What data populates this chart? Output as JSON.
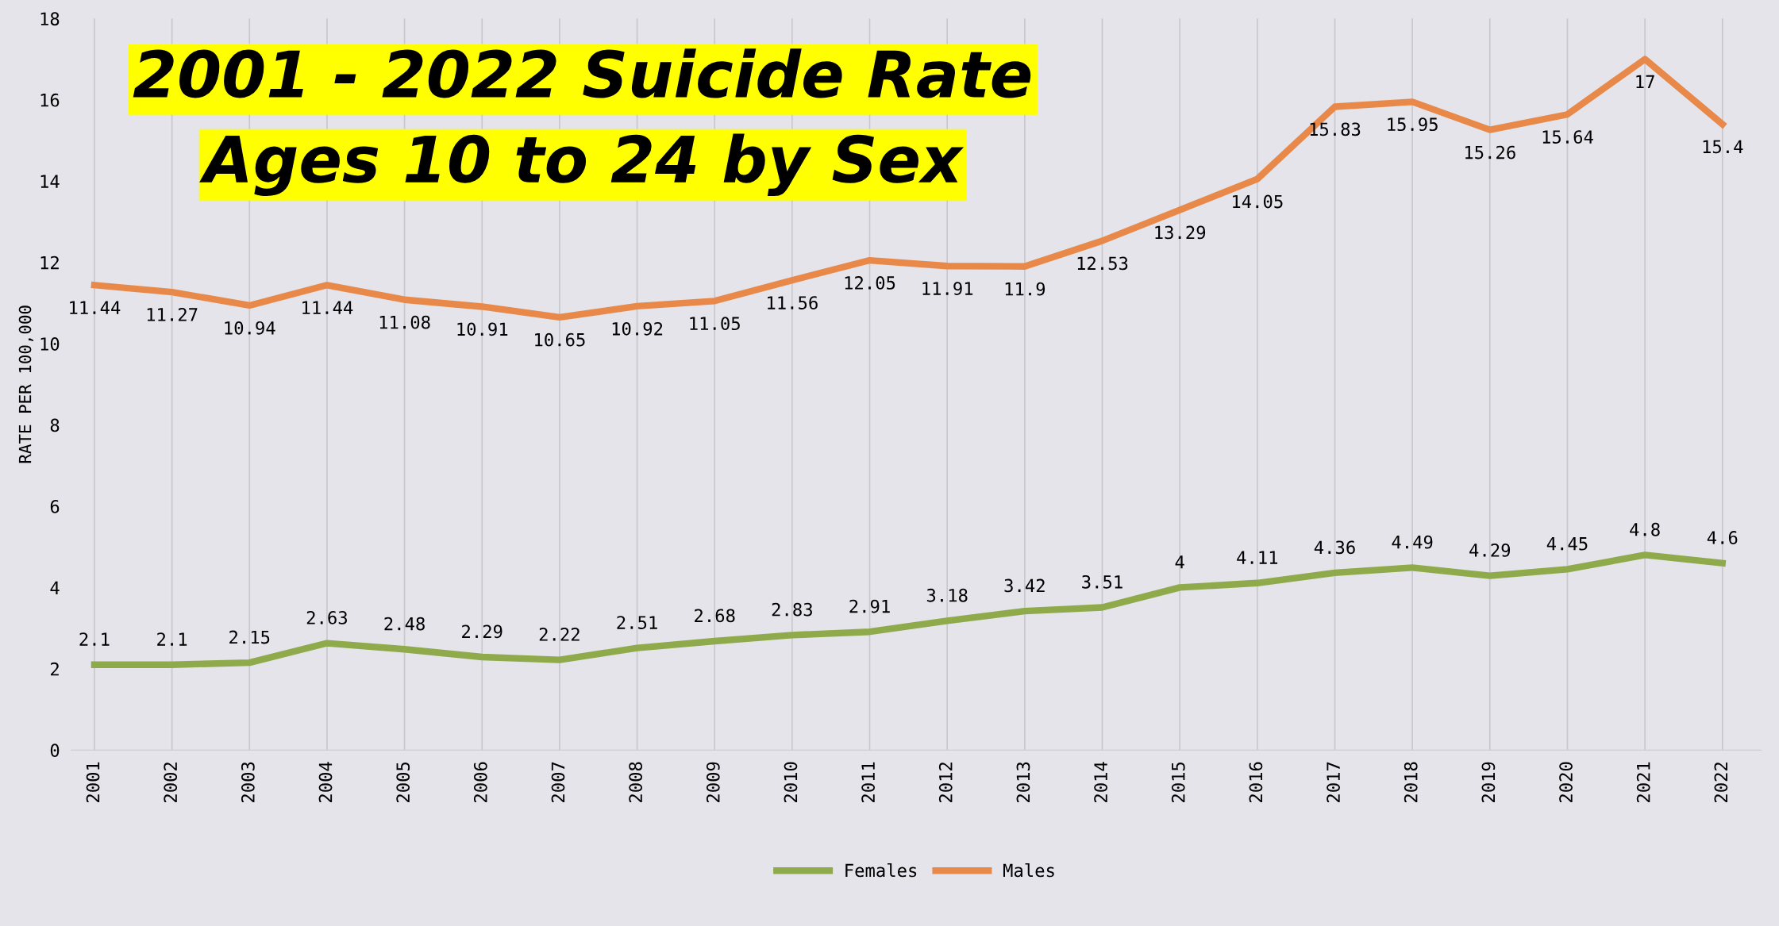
{
  "chart_data": {
    "type": "line",
    "title": "2001 - 2022 Suicide Rate",
    "subtitle": "Ages 10 to 24 by Sex",
    "ylabel": "RATE PER 100,000",
    "categories": [
      "2001",
      "2002",
      "2003",
      "2004",
      "2005",
      "2006",
      "2007",
      "2008",
      "2009",
      "2010",
      "2011",
      "2012",
      "2013",
      "2014",
      "2015",
      "2016",
      "2017",
      "2018",
      "2019",
      "2020",
      "2021",
      "2022"
    ],
    "series": [
      {
        "name": "Females",
        "color": "#8faa4a",
        "values": [
          2.1,
          2.1,
          2.15,
          2.63,
          2.48,
          2.29,
          2.22,
          2.51,
          2.68,
          2.83,
          2.91,
          3.18,
          3.42,
          3.51,
          4,
          4.11,
          4.36,
          4.49,
          4.29,
          4.45,
          4.8,
          4.6
        ]
      },
      {
        "name": "Males",
        "color": "#e8894a",
        "values": [
          11.44,
          11.27,
          10.94,
          11.44,
          11.08,
          10.91,
          10.65,
          10.92,
          11.05,
          11.56,
          12.05,
          11.91,
          11.9,
          12.53,
          13.29,
          14.05,
          15.83,
          15.95,
          15.26,
          15.64,
          17,
          15.4
        ]
      }
    ],
    "ylim": [
      0,
      18
    ],
    "yticks": [
      0,
      2,
      4,
      6,
      8,
      10,
      12,
      14,
      16,
      18
    ],
    "grid": "x",
    "legend": "bottom",
    "data_labels": true,
    "marker": "none",
    "line_style": "solid"
  }
}
